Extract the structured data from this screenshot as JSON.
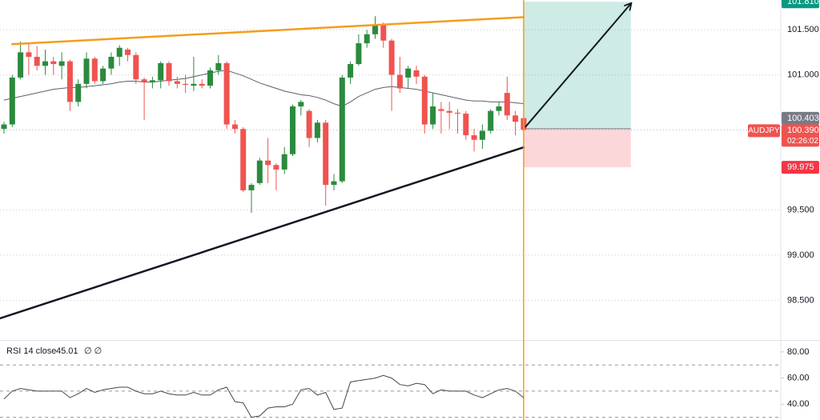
{
  "chart_data": {
    "type": "candlestick",
    "symbol": "AUDJPY",
    "countdown": "02:26:02",
    "up_color": "#2b8a3e",
    "down_color": "#ef5350",
    "series": {
      "open": [
        100.4,
        100.45,
        100.97,
        101.25,
        101.2,
        101.1,
        101.15,
        101.1,
        101.15,
        100.7,
        100.9,
        101.18,
        100.93,
        101.07,
        101.2,
        101.28,
        101.22,
        100.95,
        100.92,
        100.94,
        101.13,
        100.93,
        100.9,
        100.88,
        100.9,
        100.88,
        101.05,
        101.13,
        100.45,
        100.4,
        99.72,
        99.8,
        100.05,
        100.0,
        99.95,
        100.12,
        100.65,
        100.6,
        100.3,
        100.47,
        99.78,
        99.82,
        100.97,
        101.12,
        101.35,
        101.45,
        101.55,
        101.38,
        101.0,
        100.97,
        101.05,
        100.98,
        100.45,
        100.62,
        100.6,
        100.58,
        100.57,
        100.33,
        100.28,
        100.38,
        100.6,
        100.8,
        100.55,
        100.52
      ],
      "high": [
        100.48,
        101.0,
        101.37,
        101.35,
        101.32,
        101.28,
        101.2,
        101.25,
        101.17,
        100.95,
        101.25,
        101.2,
        101.1,
        101.25,
        101.33,
        101.3,
        101.25,
        100.97,
        100.98,
        101.15,
        101.15,
        100.98,
        101.0,
        101.2,
        100.95,
        101.08,
        101.22,
        101.15,
        100.5,
        100.42,
        99.8,
        100.08,
        100.3,
        100.02,
        100.2,
        100.67,
        100.72,
        100.62,
        100.5,
        100.5,
        99.9,
        101.0,
        101.15,
        101.45,
        101.5,
        101.65,
        101.58,
        101.4,
        101.2,
        101.1,
        101.1,
        101.0,
        100.8,
        100.7,
        100.7,
        100.62,
        100.6,
        100.4,
        100.45,
        100.62,
        100.7,
        100.98,
        100.6,
        100.6
      ],
      "low": [
        100.35,
        100.42,
        100.95,
        101.0,
        101.05,
        101.0,
        101.0,
        100.95,
        100.6,
        100.65,
        100.85,
        100.9,
        100.9,
        101.0,
        101.1,
        101.15,
        100.9,
        100.5,
        100.85,
        100.85,
        100.88,
        100.85,
        100.8,
        100.82,
        100.85,
        100.85,
        101.0,
        100.4,
        100.35,
        99.7,
        99.47,
        99.78,
        99.8,
        99.72,
        99.9,
        100.1,
        100.55,
        100.2,
        100.25,
        99.55,
        99.72,
        99.8,
        100.9,
        101.1,
        101.3,
        101.4,
        101.3,
        100.6,
        100.8,
        100.85,
        100.9,
        100.35,
        100.4,
        100.35,
        100.4,
        100.35,
        100.28,
        100.15,
        100.18,
        100.35,
        100.55,
        100.5,
        100.33,
        100.38
      ],
      "close": [
        100.45,
        100.97,
        101.25,
        101.2,
        101.1,
        101.15,
        101.12,
        101.15,
        100.7,
        100.9,
        101.18,
        100.93,
        101.07,
        101.2,
        101.3,
        101.22,
        100.95,
        100.92,
        100.94,
        101.13,
        100.93,
        100.9,
        100.89,
        100.9,
        100.88,
        101.05,
        101.13,
        100.45,
        100.4,
        99.72,
        99.78,
        100.05,
        100.0,
        99.95,
        100.12,
        100.65,
        100.7,
        100.3,
        100.47,
        99.78,
        99.82,
        100.97,
        101.12,
        101.35,
        101.45,
        101.55,
        101.38,
        101.0,
        100.85,
        101.07,
        100.98,
        100.45,
        100.65,
        100.6,
        100.58,
        100.57,
        100.33,
        100.28,
        100.38,
        100.6,
        100.65,
        100.55,
        100.48,
        100.39
      ]
    },
    "moving_average": {
      "color": "#5d606b",
      "values": [
        100.72,
        100.74,
        100.76,
        100.78,
        100.8,
        100.82,
        100.84,
        100.85,
        100.86,
        100.86,
        100.87,
        100.88,
        100.89,
        100.9,
        100.92,
        100.93,
        100.93,
        100.92,
        100.92,
        100.93,
        100.94,
        100.95,
        100.96,
        100.98,
        101.0,
        101.02,
        101.04,
        101.05,
        101.02,
        100.99,
        100.95,
        100.91,
        100.88,
        100.85,
        100.82,
        100.8,
        100.78,
        100.77,
        100.75,
        100.72,
        100.68,
        100.65,
        100.7,
        100.76,
        100.8,
        100.84,
        100.86,
        100.87,
        100.86,
        100.85,
        100.84,
        100.82,
        100.8,
        100.78,
        100.76,
        100.74,
        100.72,
        100.71,
        100.71,
        100.7,
        100.7,
        100.7,
        100.69,
        100.68
      ]
    },
    "ylim": [
      98.06,
      101.83
    ],
    "yticks": [
      {
        "value": 98.5,
        "label": "98.500"
      },
      {
        "value": 99,
        "label": "99.000"
      },
      {
        "value": 99.5,
        "label": "99.500"
      },
      {
        "value": 101,
        "label": "101.000"
      },
      {
        "value": 101.5,
        "label": "101.500"
      }
    ],
    "grid": true,
    "last_price": {
      "value": 100.39,
      "label": "100.390",
      "color": "#ef5350"
    },
    "position": {
      "entry": {
        "value": 100.403,
        "label": "100.403"
      },
      "target": {
        "value": 101.81,
        "label": "101.810"
      },
      "stop": {
        "value": 99.975,
        "label": "99.975"
      },
      "start": 63,
      "end": 76,
      "profit_color": "#089981",
      "loss_color": "#f23645",
      "entry_color": "#787b86"
    },
    "current_bar_line": {
      "index": 63,
      "color": "#f59d1a"
    },
    "trendlines": [
      {
        "color": "#f59d1a",
        "from": [
          0.9,
          101.34
        ],
        "to": [
          63.1,
          101.64
        ]
      },
      {
        "color": "#131722",
        "from": [
          -0.5,
          98.3
        ],
        "to": [
          63.1,
          100.2
        ]
      }
    ],
    "arrow": {
      "color": "#131722",
      "from": [
        63.2,
        100.42
      ],
      "to": [
        76,
        101.79
      ]
    },
    "rsi": {
      "title": "RSI 14 close",
      "value": 45.01,
      "icons": "∅ ∅",
      "color": "#434651",
      "values": [
        44,
        50,
        52,
        51,
        50,
        50,
        50,
        50,
        45,
        48,
        52,
        49,
        51,
        52,
        53,
        53,
        50,
        48,
        48,
        50,
        48,
        47,
        47,
        49,
        47,
        47,
        51,
        53,
        42,
        41,
        30,
        31,
        37,
        38,
        38,
        40,
        51,
        52,
        47,
        49,
        36,
        37,
        57,
        58,
        59,
        60,
        62,
        60,
        55,
        54,
        56,
        55,
        48,
        51,
        50,
        50,
        50,
        47,
        45,
        48,
        51,
        52,
        50,
        45
      ],
      "ylim": [
        27.9,
        88.5
      ],
      "yticks": [
        {
          "value": 40,
          "label": "40.00"
        },
        {
          "value": 60,
          "label": "60.00"
        },
        {
          "value": 80,
          "label": "80.00"
        }
      ],
      "levels": [
        30,
        50,
        70
      ]
    }
  }
}
